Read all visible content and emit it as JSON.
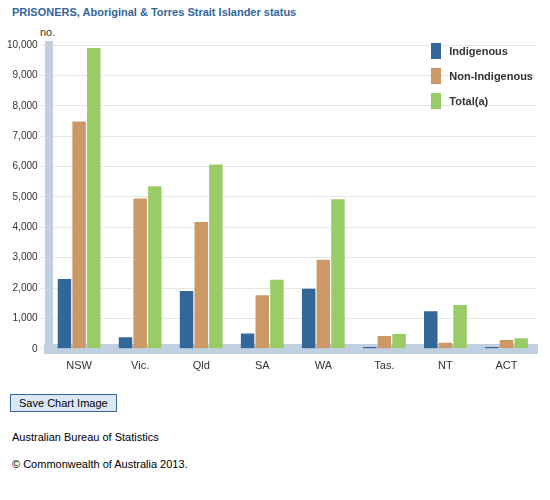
{
  "chart_data": {
    "type": "bar",
    "title": "PRISONERS, Aboriginal & Torres Strait Islander status",
    "ylabel": "no.",
    "categories": [
      "NSW",
      "Vic.",
      "Qld",
      "SA",
      "WA",
      "Tas.",
      "NT",
      "ACT"
    ],
    "series": [
      {
        "name": "Indigenous",
        "color": "#336699",
        "values": [
          2300,
          380,
          1900,
          500,
          1980,
          60,
          1240,
          60
        ]
      },
      {
        "name": "Non-Indigenous",
        "color": "#cc9966",
        "values": [
          7480,
          4950,
          4170,
          1760,
          2930,
          420,
          200,
          290
        ]
      },
      {
        "name": "Total(a)",
        "color": "#99cc66",
        "values": [
          9900,
          5350,
          6070,
          2270,
          4920,
          490,
          1440,
          350
        ]
      }
    ],
    "ylim": [
      0,
      10000
    ],
    "yticks": [
      0,
      {
        "value": 1000,
        "label": "1,000"
      },
      {
        "value": 2000,
        "label": "2,000"
      },
      {
        "value": 3000,
        "label": "3,000"
      },
      {
        "value": 4000,
        "label": "4,000"
      },
      {
        "value": 5000,
        "label": "5,000"
      },
      {
        "value": 6000,
        "label": "6,000"
      },
      {
        "value": 7000,
        "label": "7,000"
      },
      {
        "value": 8000,
        "label": "8,000"
      },
      {
        "value": 9000,
        "label": "9,000"
      },
      {
        "value": 10000,
        "label": "10,000"
      }
    ],
    "grid": true,
    "legend": "top-right",
    "annotations": [
      "Save Chart Image",
      "Australian Bureau of Statistics",
      "© Commonwealth of Australia 2013."
    ]
  }
}
